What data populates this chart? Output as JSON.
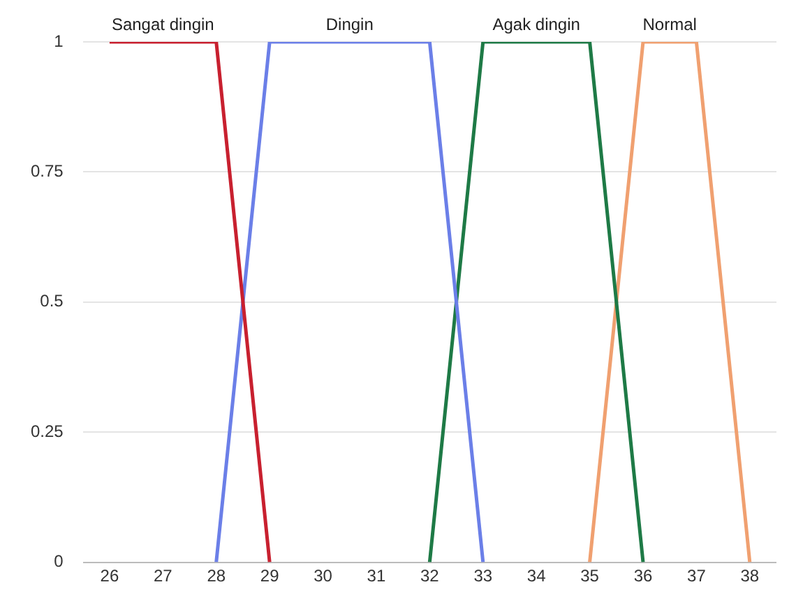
{
  "chart_data": {
    "type": "line",
    "xlim": [
      25.5,
      38.5
    ],
    "xticks": [
      26,
      27,
      28,
      29,
      30,
      31,
      32,
      33,
      34,
      35,
      36,
      37,
      38
    ],
    "ylim": [
      0,
      1
    ],
    "yticks": [
      0,
      0.25,
      0.5,
      0.75,
      1
    ],
    "grid": "y",
    "legend": false,
    "marker": "none",
    "line_style": "solid",
    "series": [
      {
        "name": "Sangat dingin",
        "color": "#c8202f",
        "x": [
          26,
          28,
          29
        ],
        "values": [
          1,
          1,
          0
        ]
      },
      {
        "name": "Dingin",
        "color": "#6b7fe8",
        "x": [
          28,
          29,
          32,
          33
        ],
        "values": [
          0,
          1,
          1,
          0
        ]
      },
      {
        "name": "Agak dingin",
        "color": "#1e7a46",
        "x": [
          32,
          33,
          35,
          36
        ],
        "values": [
          0,
          1,
          1,
          0
        ]
      },
      {
        "name": "Normal",
        "color": "#f0a070",
        "x": [
          35,
          36,
          37,
          38
        ],
        "values": [
          0,
          1,
          1,
          0
        ]
      }
    ]
  }
}
